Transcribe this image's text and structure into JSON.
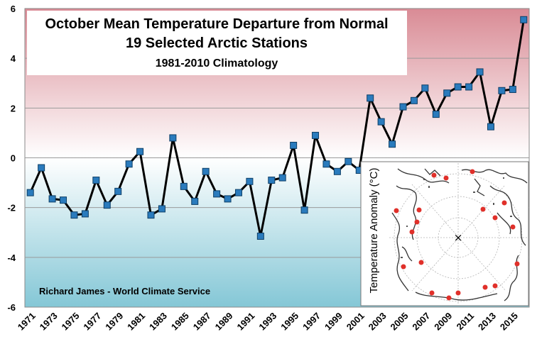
{
  "chart_data": {
    "type": "line",
    "title": "October Mean Temperature Departure from Normal",
    "subtitle": "19 Selected Arctic Stations",
    "subtitle2": "1981-2010 Climatology",
    "credit": "Richard James - World Climate Service",
    "xlabel": "",
    "ylabel": "",
    "ylim": [
      -6,
      6
    ],
    "yticks": [
      6,
      4,
      2,
      0,
      -2,
      -4,
      -6
    ],
    "xlim": [
      1971,
      2016
    ],
    "xtick_labels": [
      "1971",
      "1973",
      "1975",
      "1977",
      "1979",
      "1981",
      "1983",
      "1985",
      "1987",
      "1989",
      "1991",
      "1993",
      "1995",
      "1997",
      "1999",
      "2001",
      "2003",
      "2005",
      "2007",
      "2009",
      "2011",
      "2013",
      "2015"
    ],
    "x": [
      1971,
      1972,
      1973,
      1974,
      1975,
      1976,
      1977,
      1978,
      1979,
      1980,
      1981,
      1982,
      1983,
      1984,
      1985,
      1986,
      1987,
      1988,
      1989,
      1990,
      1991,
      1992,
      1993,
      1994,
      1995,
      1996,
      1997,
      1998,
      1999,
      2000,
      2001,
      2002,
      2003,
      2004,
      2005,
      2006,
      2007,
      2008,
      2009,
      2010,
      2011,
      2012,
      2013,
      2014,
      2015,
      2016
    ],
    "series": [
      {
        "name": "October mean temperature departure",
        "values": [
          -1.4,
          -0.4,
          -1.65,
          -1.7,
          -2.3,
          -2.25,
          -0.9,
          -1.9,
          -1.35,
          -0.25,
          0.25,
          -2.3,
          -2.05,
          0.8,
          -1.15,
          -1.75,
          -0.55,
          -1.45,
          -1.65,
          -1.4,
          -0.95,
          -3.15,
          -0.9,
          -0.8,
          0.5,
          -2.1,
          0.9,
          -0.25,
          -0.55,
          -0.15,
          -0.5,
          2.4,
          1.45,
          0.55,
          2.05,
          2.3,
          2.8,
          1.75,
          2.6,
          2.85,
          2.85,
          3.45,
          1.25,
          2.7,
          2.75,
          5.55
        ]
      }
    ]
  },
  "inset": {
    "ylabel": "Temperature Anomaly (°C)",
    "center_mark": "×"
  },
  "colors": {
    "line": "#000000",
    "marker_fill": "#2a7bbd",
    "marker_stroke": "#0e3f66",
    "warm_top": "#d98b95",
    "cold_bottom": "#84c7d6",
    "station_dot": "#e0302a"
  }
}
